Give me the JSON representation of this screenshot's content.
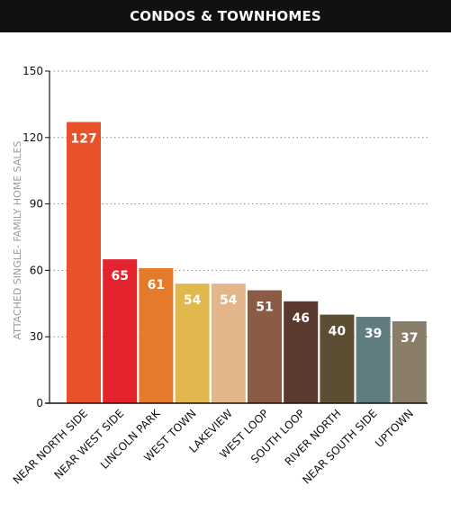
{
  "chart_data": {
    "type": "bar",
    "title": "CONDOS & TOWNHOMES",
    "ylabel": "ATTACHED SINGLE- FAMILY HOME SALES",
    "xlabel": "",
    "ylim": [
      0,
      150
    ],
    "yticks": [
      "0",
      "30",
      "60",
      "90",
      "120",
      "150"
    ],
    "grid": true,
    "categories": [
      "NEAR NORTH SIDE",
      "NEAR WEST SIDE",
      "LINCOLN PARK",
      "WEST TOWN",
      "LAKEVIEW",
      "WEST LOOP",
      "SOUTH LOOP",
      "RIVER NORTH",
      "NEAR SOUTH SIDE",
      "UPTOWN"
    ],
    "values": [
      127,
      65,
      61,
      54,
      54,
      51,
      46,
      40,
      39,
      37
    ],
    "data_labels": [
      "127",
      "65",
      "61",
      "54",
      "54",
      "51",
      "46",
      "40",
      "39",
      "37"
    ],
    "colors": [
      "#e8522b",
      "#e3232e",
      "#e57b2a",
      "#e2b84e",
      "#e2b68a",
      "#8b5b45",
      "#5a3a2e",
      "#5b4e32",
      "#607c80",
      "#8a7d6a"
    ]
  }
}
